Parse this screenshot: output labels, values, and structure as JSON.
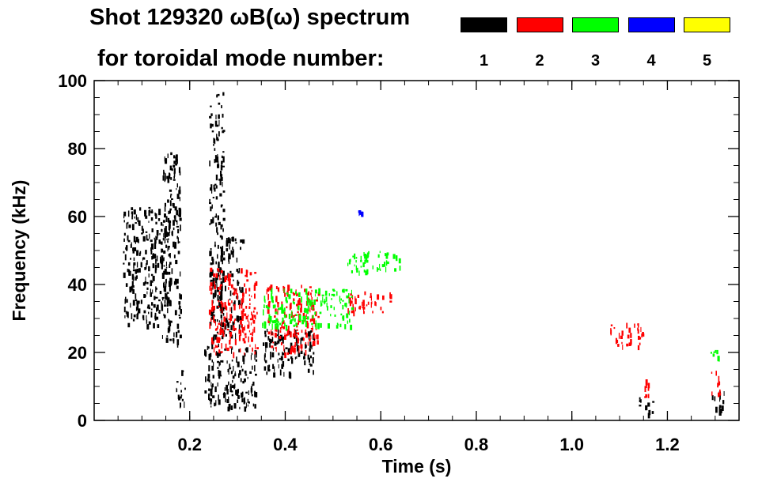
{
  "chart_data": {
    "type": "heatmap",
    "title": "Shot 129320 ωB(ω) spectrum",
    "subtitle": "for toroidal mode number:",
    "xlabel": "Time (s)",
    "ylabel": "Frequency (kHz)",
    "xlim": [
      0.0,
      1.35
    ],
    "ylim": [
      0,
      100
    ],
    "x_ticks": [
      0.2,
      0.4,
      0.6,
      0.8,
      1.0,
      1.2
    ],
    "x_tick_labels": [
      "0.2",
      "0.4",
      "0.6",
      "0.8",
      "1.0",
      "1.2"
    ],
    "y_ticks": [
      0,
      20,
      40,
      60,
      80,
      100
    ],
    "y_tick_labels": [
      "0",
      "20",
      "40",
      "60",
      "80",
      "100"
    ],
    "grid": false,
    "legend": {
      "placement": "top-right",
      "entries": [
        {
          "label": "1",
          "color": "#000000"
        },
        {
          "label": "2",
          "color": "#ff0000"
        },
        {
          "label": "3",
          "color": "#00ff00"
        },
        {
          "label": "4",
          "color": "#0000ff"
        },
        {
          "label": "5",
          "color": "#ffff00"
        }
      ]
    },
    "series": [
      {
        "name": "1",
        "color": "#000000",
        "blobs": [
          {
            "t": [
              0.06,
              0.16
            ],
            "f": [
              28,
              63
            ]
          },
          {
            "t": [
              0.14,
              0.18
            ],
            "f": [
              22,
              79
            ]
          },
          {
            "t": [
              0.17,
              0.19
            ],
            "f": [
              4,
              15
            ]
          },
          {
            "t": [
              0.23,
              0.34
            ],
            "f": [
              4,
              22
            ]
          },
          {
            "t": [
              0.24,
              0.27
            ],
            "f": [
              22,
              97
            ]
          },
          {
            "t": [
              0.26,
              0.31
            ],
            "f": [
              25,
              55
            ]
          },
          {
            "t": [
              0.35,
              0.46
            ],
            "f": [
              14,
              27
            ]
          },
          {
            "t": [
              1.14,
              1.17
            ],
            "f": [
              2,
              7
            ]
          },
          {
            "t": [
              1.29,
              1.32
            ],
            "f": [
              2,
              9
            ]
          }
        ]
      },
      {
        "name": "2",
        "color": "#ff0000",
        "blobs": [
          {
            "t": [
              0.24,
              0.34
            ],
            "f": [
              20,
              45
            ]
          },
          {
            "t": [
              0.36,
              0.47
            ],
            "f": [
              20,
              40
            ]
          },
          {
            "t": [
              0.53,
              0.62
            ],
            "f": [
              32,
              38
            ]
          },
          {
            "t": [
              1.08,
              1.15
            ],
            "f": [
              22,
              29
            ]
          },
          {
            "t": [
              1.15,
              1.16
            ],
            "f": [
              7,
              13
            ]
          },
          {
            "t": [
              1.29,
              1.31
            ],
            "f": [
              8,
              15
            ]
          }
        ]
      },
      {
        "name": "3",
        "color": "#00ff00",
        "blobs": [
          {
            "t": [
              0.35,
              0.54
            ],
            "f": [
              28,
              39
            ]
          },
          {
            "t": [
              0.53,
              0.64
            ],
            "f": [
              44,
              50
            ]
          },
          {
            "t": [
              1.29,
              1.31
            ],
            "f": [
              18,
              21
            ]
          }
        ]
      },
      {
        "name": "4",
        "color": "#0000ff",
        "blobs": [
          {
            "t": [
              0.55,
              0.56
            ],
            "f": [
              61,
              62
            ]
          }
        ]
      },
      {
        "name": "5",
        "color": "#ffff00",
        "blobs": []
      }
    ]
  }
}
